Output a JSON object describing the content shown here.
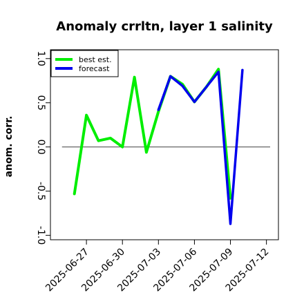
{
  "chart_data": {
    "type": "line",
    "title": "Anomaly crrltn, layer 1 salinity",
    "ylabel": "anom. corr.",
    "xlabel": "",
    "ylim": [
      -1.05,
      1.1
    ],
    "xlim": [
      "2025-06-24",
      "2025-07-13"
    ],
    "yticks": [
      -1.0,
      -0.5,
      0.0,
      0.5,
      1.0
    ],
    "ytick_labels": [
      "-1.0",
      "-0.5",
      "0.0",
      "0.5",
      "1.0"
    ],
    "xticks": [
      {
        "date": "2025-06-27",
        "label": "2025-06-27",
        "color": "#000000"
      },
      {
        "date": "2025-06-30",
        "label": "2025-06-30",
        "color": "#000000"
      },
      {
        "date": "2025-07-03",
        "label": "2025-07-03",
        "color": "#228b22"
      },
      {
        "date": "2025-07-06",
        "label": "2025-07-06",
        "color": "#000000"
      },
      {
        "date": "2025-07-09",
        "label": "2025-07-09",
        "color": "#000000"
      },
      {
        "date": "2025-07-12",
        "label": "2025-07-12",
        "color": "#000000"
      }
    ],
    "reference_line_y": 0,
    "legend_position": "top-left",
    "series": [
      {
        "name": "best est.",
        "color": "#00ee00",
        "x": [
          "2025-06-26",
          "2025-06-27",
          "2025-06-28",
          "2025-06-29",
          "2025-06-30",
          "2025-07-01",
          "2025-07-02",
          "2025-07-03",
          "2025-07-04",
          "2025-07-05",
          "2025-07-06",
          "2025-07-07",
          "2025-07-08",
          "2025-07-09"
        ],
        "y": [
          -0.53,
          0.36,
          0.07,
          0.1,
          0.0,
          0.79,
          -0.06,
          0.4,
          0.8,
          0.71,
          0.51,
          0.68,
          0.88,
          -0.58
        ]
      },
      {
        "name": "forecast",
        "color": "#0000ee",
        "x": [
          "2025-07-03",
          "2025-07-04",
          "2025-07-05",
          "2025-07-06",
          "2025-07-07",
          "2025-07-08",
          "2025-07-09",
          "2025-07-10"
        ],
        "y": [
          0.42,
          0.8,
          0.69,
          0.51,
          0.68,
          0.85,
          -0.87,
          0.87
        ]
      }
    ]
  }
}
